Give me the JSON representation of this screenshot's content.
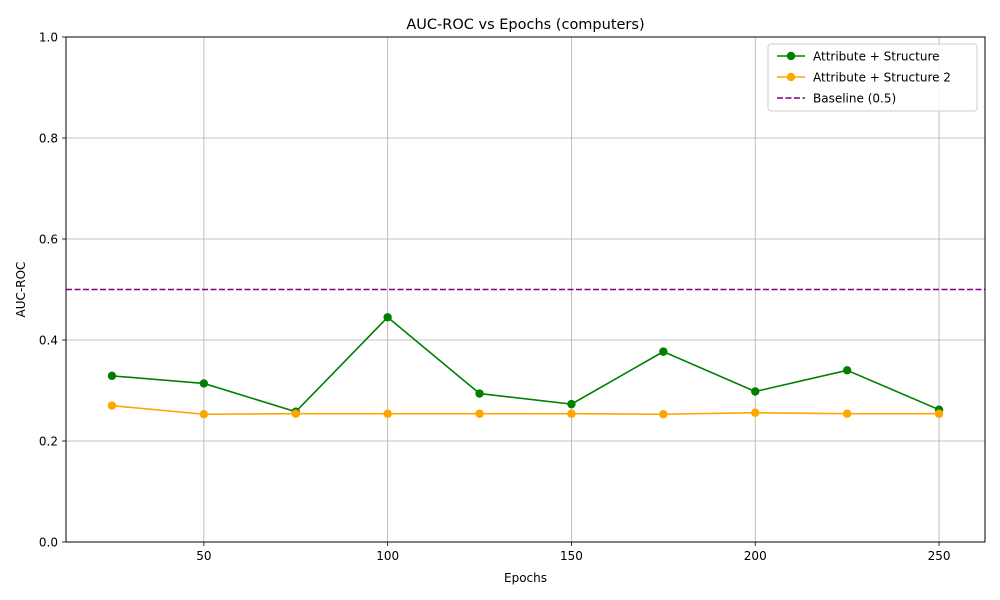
{
  "chart_data": {
    "type": "line",
    "title": "AUC-ROC vs Epochs (computers)",
    "xlabel": "Epochs",
    "ylabel": "AUC-ROC",
    "x": [
      25,
      50,
      75,
      100,
      125,
      150,
      175,
      200,
      225,
      250
    ],
    "xlim": [
      12.5,
      262.5
    ],
    "ylim": [
      0,
      1
    ],
    "xticks": [
      50,
      100,
      150,
      200,
      250
    ],
    "yticks": [
      0.0,
      0.2,
      0.4,
      0.6,
      0.8,
      1.0
    ],
    "xtick_labels": [
      "50",
      "100",
      "150",
      "200",
      "250"
    ],
    "ytick_labels": [
      "0.0",
      "0.2",
      "0.4",
      "0.6",
      "0.8",
      "1.0"
    ],
    "grid": true,
    "legend_position": "top-right",
    "series": [
      {
        "name": "Attribute + Structure",
        "color": "#008000",
        "style": "solid",
        "marker": "circle",
        "values": [
          0.329,
          0.314,
          0.258,
          0.445,
          0.294,
          0.273,
          0.377,
          0.298,
          0.34,
          0.262
        ]
      },
      {
        "name": "Attribute + Structure 2",
        "color": "#ffa500",
        "style": "solid",
        "marker": "circle",
        "values": [
          0.27,
          0.253,
          0.254,
          0.254,
          0.254,
          0.254,
          0.253,
          0.256,
          0.254,
          0.254
        ]
      }
    ],
    "reference_lines": [
      {
        "name": "Baseline (0.5)",
        "y": 0.5,
        "color": "#800080",
        "style": "dashed"
      }
    ]
  }
}
